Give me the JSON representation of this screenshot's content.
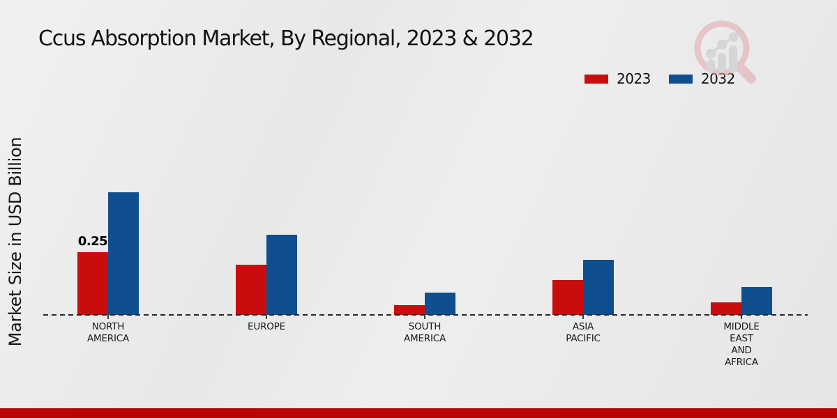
{
  "title": "Ccus Absorption Market, By Regional, 2023 & 2032",
  "y_axis_label": "Market Size in USD Billion",
  "legend": [
    {
      "label": "2023",
      "color": "#c90d0e"
    },
    {
      "label": "2032",
      "color": "#0f4f8f"
    }
  ],
  "colors": {
    "series_2023": "#c90d0e",
    "series_2032": "#0f4f8f",
    "footer_bar": "#ba0505",
    "watermark_ring": "#dfa8ae",
    "watermark_bars": "#c3c6cb"
  },
  "logo": {
    "name": "magnifier-growth-chart-watermark"
  },
  "chart_data": {
    "type": "bar",
    "title": "Ccus Absorption Market, By Regional, 2023 & 2032",
    "xlabel": "",
    "ylabel": "Market Size in USD Billion",
    "categories": [
      "NORTH AMERICA",
      "EUROPE",
      "SOUTH AMERICA",
      "ASIA PACIFIC",
      "MIDDLE EAST AND AFRICA"
    ],
    "category_label_lines": [
      [
        "NORTH",
        "AMERICA"
      ],
      [
        "EUROPE"
      ],
      [
        "SOUTH",
        "AMERICA"
      ],
      [
        "ASIA",
        "PACIFIC"
      ],
      [
        "MIDDLE",
        "EAST",
        "AND",
        "AFRICA"
      ]
    ],
    "series": [
      {
        "name": "2023",
        "color": "#c90d0e",
        "values": [
          0.25,
          0.2,
          0.04,
          0.14,
          0.05
        ]
      },
      {
        "name": "2032",
        "color": "#0f4f8f",
        "values": [
          0.49,
          0.32,
          0.09,
          0.22,
          0.11
        ]
      }
    ],
    "value_labels": [
      {
        "category": "NORTH AMERICA",
        "series": "2023",
        "text": "0.25"
      }
    ],
    "ylim": [
      0,
      0.54
    ],
    "grid": false,
    "legend_position": "top-right",
    "baseline_style": "dashed"
  }
}
